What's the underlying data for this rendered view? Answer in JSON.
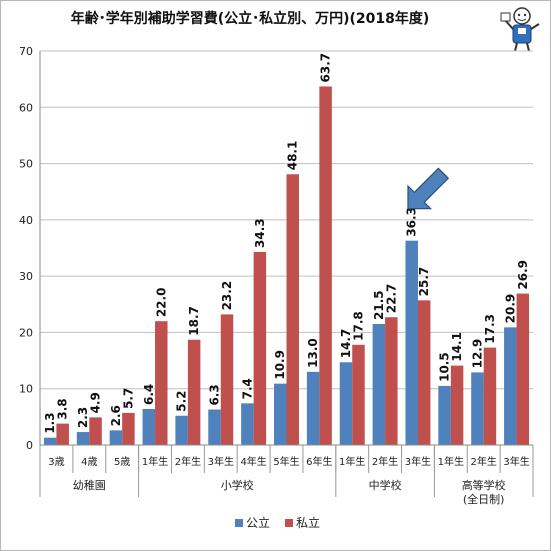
{
  "chart_data": {
    "type": "bar",
    "title": "年齢･学年別補助学習費(公立･私立別、万円)(2018年度)",
    "categories": [
      "3歳",
      "4歳",
      "5歳",
      "1年生",
      "2年生",
      "3年生",
      "4年生",
      "5年生",
      "6年生",
      "1年生",
      "2年生",
      "3年生",
      "1年生",
      "2年生",
      "3年生"
    ],
    "groups": [
      {
        "label": "幼稚園",
        "start": 0,
        "end": 2
      },
      {
        "label": "小学校",
        "start": 3,
        "end": 8
      },
      {
        "label": "中学校",
        "start": 9,
        "end": 11
      },
      {
        "label": "高等学校",
        "sublabel": "(全日制)",
        "start": 12,
        "end": 14
      }
    ],
    "series": [
      {
        "name": "公立",
        "color": "#4f81bd",
        "values": [
          1.3,
          2.3,
          2.6,
          6.4,
          5.2,
          6.3,
          7.4,
          10.9,
          13.0,
          14.7,
          21.5,
          36.3,
          10.5,
          12.9,
          20.9
        ]
      },
      {
        "name": "私立",
        "color": "#c0504d",
        "values": [
          3.8,
          4.9,
          5.7,
          22.0,
          18.7,
          23.2,
          34.3,
          48.1,
          63.7,
          17.8,
          22.7,
          25.7,
          14.1,
          17.3,
          26.9
        ]
      }
    ],
    "ylim": [
      0,
      70
    ],
    "yticks": [
      0,
      10,
      20,
      30,
      40,
      50,
      60,
      70
    ],
    "grid": true,
    "legend": "bottom",
    "annotation": {
      "type": "arrow",
      "target_category_index": 11,
      "color": "#4f81bd"
    }
  },
  "mascot": {
    "icon": "mascot-figure-icon"
  }
}
